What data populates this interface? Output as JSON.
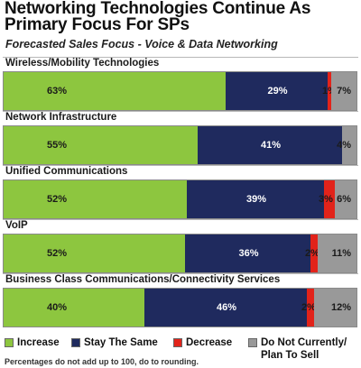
{
  "colors": {
    "increase": "#8dc63f",
    "stay": "#1f2a5e",
    "decrease": "#e2231a",
    "none": "#999999"
  },
  "chart_data": {
    "type": "bar",
    "orientation": "horizontal",
    "stacked": true,
    "title": "Networking Technologies Continue As Primary Focus For SPs",
    "subtitle": "Forecasted Sales Focus - Voice & Data Networking",
    "categories": [
      "Wireless/Mobility Technologies",
      "Network Infrastructure",
      "Unified Communications",
      "VoIP",
      "Business Class Communications/Connectivity Services"
    ],
    "series": [
      {
        "name": "Increase",
        "color_key": "increase",
        "values": [
          63,
          55,
          52,
          52,
          40
        ],
        "labels": [
          "63%",
          "55%",
          "52%",
          "52%",
          "40%"
        ]
      },
      {
        "name": "Stay The Same",
        "color_key": "stay",
        "values": [
          29,
          41,
          39,
          36,
          46
        ],
        "labels": [
          "29%",
          "41%",
          "39%",
          "36%",
          "46%"
        ]
      },
      {
        "name": "Decrease",
        "color_key": "decrease",
        "values": [
          1,
          0,
          3,
          2,
          2
        ],
        "labels": [
          "1%",
          "",
          "3%",
          "2%",
          "2%"
        ]
      },
      {
        "name": "Do Not Currently/ Plan To Sell",
        "color_key": "none",
        "values": [
          7,
          4,
          6,
          11,
          12
        ],
        "labels": [
          "7%",
          "4%",
          "6%",
          "11%",
          "12%"
        ]
      }
    ],
    "legend_position": "bottom",
    "grid": false
  },
  "legend": {
    "items": [
      {
        "label": "Increase",
        "color_key": "increase"
      },
      {
        "label": "Stay The Same",
        "color_key": "stay"
      },
      {
        "label": "Decrease",
        "color_key": "decrease"
      },
      {
        "label": "Do Not Currently/",
        "label2": "Plan To Sell",
        "color_key": "none"
      }
    ]
  },
  "footnote": "Percentages do not add up to 100, do to rounding."
}
